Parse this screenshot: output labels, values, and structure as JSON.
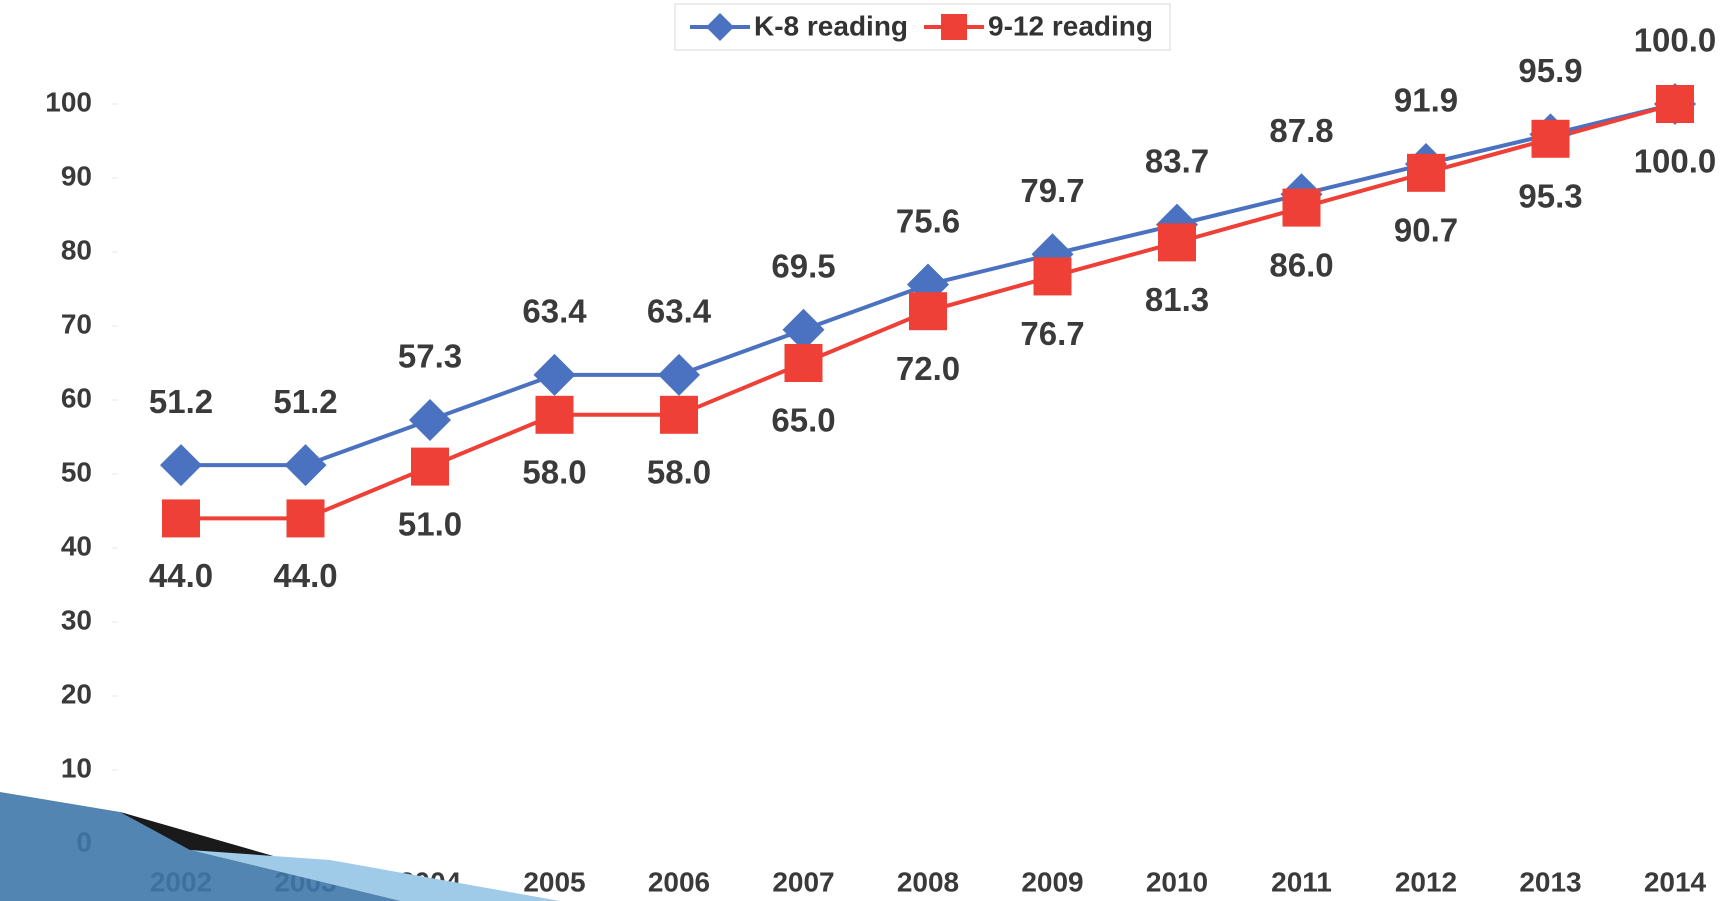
{
  "chart_data": {
    "type": "line",
    "categories": [
      "2002",
      "2003",
      "2004",
      "2005",
      "2006",
      "2007",
      "2008",
      "2009",
      "2010",
      "2011",
      "2012",
      "2013",
      "2014"
    ],
    "series": [
      {
        "name": "K-8 reading",
        "color": "#4a72c0",
        "marker": "diamond",
        "values": [
          51.2,
          51.2,
          57.3,
          63.4,
          63.4,
          69.5,
          75.6,
          79.7,
          83.7,
          87.8,
          91.9,
          95.9,
          100.0
        ],
        "value_labels": [
          "51.2",
          "51.2",
          "57.3",
          "63.4",
          "63.4",
          "69.5",
          "75.6",
          "79.7",
          "83.7",
          "87.8",
          "91.9",
          "95.9",
          "100.0"
        ]
      },
      {
        "name": "9-12 reading",
        "color": "#ee4036",
        "marker": "square",
        "values": [
          44.0,
          44.0,
          51.0,
          58.0,
          58.0,
          65.0,
          72.0,
          76.7,
          81.3,
          86.0,
          90.7,
          95.3,
          100.0
        ],
        "value_labels": [
          "44.0",
          "44.0",
          "51.0",
          "58.0",
          "58.0",
          "65.0",
          "72.0",
          "76.7",
          "81.3",
          "86.0",
          "90.7",
          "95.3",
          "100.0"
        ]
      }
    ],
    "ylim": [
      0,
      100
    ],
    "yticks": [
      0,
      10,
      20,
      30,
      40,
      50,
      60,
      70,
      80,
      90,
      100
    ],
    "grid": false,
    "legend": "top"
  }
}
